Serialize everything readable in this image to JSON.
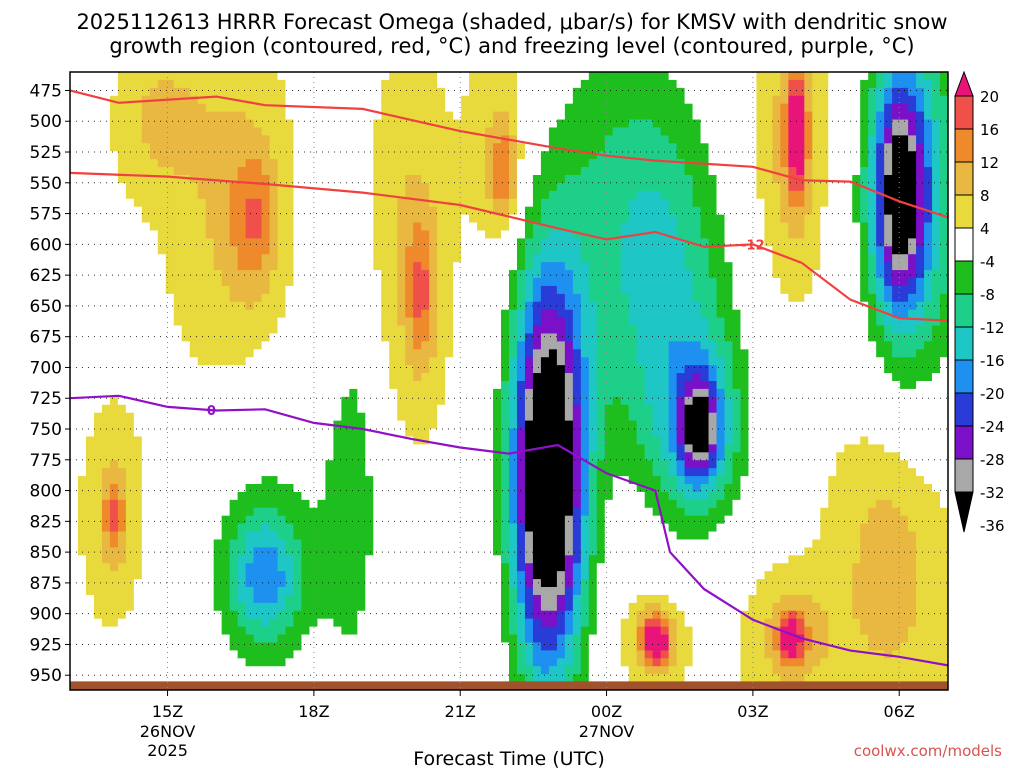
{
  "title": {
    "line1": "2025112613 HRRR Forecast Omega (shaded, μbar/s) for KMSV with dendritic snow",
    "line2": "growth region (contoured, red, °C) and freezing level (contoured, purple, °C)"
  },
  "credit": "coolwx.com/models",
  "chart_data": {
    "type": "heatmap",
    "title": "2025112613 HRRR Forecast Omega (shaded, μbar/s) for KMSV with dendritic snow growth region (contoured, red, °C) and freezing level (contoured, purple, °C)",
    "xlabel": "Forecast Time (UTC)",
    "ylabel": "",
    "x_ticks": [
      {
        "label": "15Z",
        "sub1": "26NOV",
        "sub2": "2025",
        "hours": 2
      },
      {
        "label": "18Z",
        "sub1": "",
        "sub2": "",
        "hours": 5
      },
      {
        "label": "21Z",
        "sub1": "",
        "sub2": "",
        "hours": 8
      },
      {
        "label": "00Z",
        "sub1": "27NOV",
        "sub2": "",
        "hours": 11
      },
      {
        "label": "03Z",
        "sub1": "",
        "sub2": "",
        "hours": 14
      },
      {
        "label": "06Z",
        "sub1": "",
        "sub2": "",
        "hours": 17
      }
    ],
    "xlim_hours": [
      0,
      18
    ],
    "y_ticks": [
      475,
      500,
      525,
      550,
      575,
      600,
      625,
      650,
      675,
      700,
      725,
      750,
      775,
      800,
      825,
      850,
      875,
      900,
      925,
      950
    ],
    "ylim": [
      460,
      962
    ],
    "grid": true,
    "colorbar": {
      "labels": [
        "20",
        "16",
        "12",
        "8",
        "4",
        "-4",
        "-8",
        "-12",
        "-16",
        "-20",
        "-24",
        "-28",
        "-32",
        "-36"
      ],
      "levels": [
        20,
        16,
        12,
        8,
        4,
        -4,
        -8,
        -12,
        -16,
        -20,
        -24,
        -28,
        -32,
        -36
      ],
      "colors": [
        "#e8147a",
        "#f0504a",
        "#ee8a2c",
        "#e8b840",
        "#e8da3c",
        "#ffffff",
        "#1ebe1e",
        "#1ecf8a",
        "#1ec6c6",
        "#1e90f0",
        "#2a3cd8",
        "#7a10c8",
        "#a8a8a8",
        "#000000"
      ]
    },
    "omega_blobs": [
      {
        "t": 3.2,
        "p": 560,
        "rt": 1.1,
        "rp": 150,
        "v": 6
      },
      {
        "t": 3.8,
        "p": 580,
        "rt": 0.5,
        "rp": 60,
        "v": 10
      },
      {
        "t": 1.8,
        "p": 500,
        "rt": 0.8,
        "rp": 60,
        "v": 6
      },
      {
        "t": 7.0,
        "p": 600,
        "rt": 0.8,
        "rp": 140,
        "v": 6
      },
      {
        "t": 7.2,
        "p": 640,
        "rt": 0.3,
        "rp": 60,
        "v": 10
      },
      {
        "t": 8.8,
        "p": 520,
        "rt": 0.6,
        "rp": 80,
        "v": 6
      },
      {
        "t": 8.9,
        "p": 545,
        "rt": 0.3,
        "rp": 40,
        "v": 10
      },
      {
        "t": 0.9,
        "p": 820,
        "rt": 0.6,
        "rp": 80,
        "v": 6
      },
      {
        "t": 0.9,
        "p": 820,
        "rt": 0.2,
        "rp": 30,
        "v": 10
      },
      {
        "t": 14.8,
        "p": 520,
        "rt": 0.7,
        "rp": 110,
        "v": 8
      },
      {
        "t": 14.9,
        "p": 510,
        "rt": 0.2,
        "rp": 50,
        "v": 18
      },
      {
        "t": 12.0,
        "p": 920,
        "rt": 0.6,
        "rp": 35,
        "v": 10
      },
      {
        "t": 12.0,
        "p": 922,
        "rt": 0.25,
        "rp": 18,
        "v": 18
      },
      {
        "t": 14.8,
        "p": 920,
        "rt": 0.9,
        "rp": 50,
        "v": 8
      },
      {
        "t": 14.8,
        "p": 920,
        "rt": 0.25,
        "rp": 20,
        "v": 16
      },
      {
        "t": 16.8,
        "p": 860,
        "rt": 1.1,
        "rp": 120,
        "v": 8
      },
      {
        "t": 4.0,
        "p": 860,
        "rt": 1.6,
        "rp": 120,
        "v": -8
      },
      {
        "t": 4.0,
        "p": 870,
        "rt": 0.7,
        "rp": 50,
        "v": -14
      },
      {
        "t": 5.8,
        "p": 800,
        "rt": 0.6,
        "rp": 160,
        "v": -8
      },
      {
        "t": 9.8,
        "p": 790,
        "rt": 0.7,
        "rp": 150,
        "v": -36
      },
      {
        "t": 9.8,
        "p": 790,
        "rt": 0.95,
        "rp": 200,
        "v": -12
      },
      {
        "t": 11.0,
        "p": 570,
        "rt": 1.4,
        "rp": 180,
        "v": -8
      },
      {
        "t": 12.3,
        "p": 620,
        "rt": 1.3,
        "rp": 150,
        "v": -12
      },
      {
        "t": 12.9,
        "p": 750,
        "rt": 1.1,
        "rp": 90,
        "v": -14
      },
      {
        "t": 12.9,
        "p": 750,
        "rt": 0.4,
        "rp": 40,
        "v": -24
      },
      {
        "t": 17.3,
        "p": 560,
        "rt": 1.1,
        "rp": 160,
        "v": -18
      },
      {
        "t": 17.0,
        "p": 560,
        "rt": 0.5,
        "rp": 90,
        "v": -26
      }
    ],
    "contours": [
      {
        "name": "-12",
        "color": "#f04040",
        "label_at_hours": 14.0,
        "points": [
          [
            0,
            542
          ],
          [
            2,
            545
          ],
          [
            4,
            551
          ],
          [
            6,
            558
          ],
          [
            8,
            568
          ],
          [
            10,
            587
          ],
          [
            11,
            596
          ],
          [
            12,
            590
          ],
          [
            13,
            602
          ],
          [
            14,
            600
          ],
          [
            15,
            615
          ],
          [
            16,
            645
          ],
          [
            17,
            660
          ],
          [
            18,
            662
          ]
        ]
      },
      {
        "name": "-12 upper",
        "color": "#f04040",
        "label_at_hours": null,
        "points": [
          [
            0,
            475
          ],
          [
            1,
            485
          ],
          [
            3,
            480
          ],
          [
            4,
            487
          ],
          [
            6,
            490
          ],
          [
            8,
            508
          ],
          [
            10,
            522
          ],
          [
            11,
            528
          ],
          [
            12,
            532
          ],
          [
            14,
            537
          ],
          [
            15,
            548
          ],
          [
            16,
            549
          ],
          [
            17,
            565
          ],
          [
            18,
            578
          ]
        ]
      },
      {
        "name": "0",
        "color": "#9010c8",
        "label_at_hours": 2.9,
        "points": [
          [
            0,
            725
          ],
          [
            1,
            723
          ],
          [
            2,
            732
          ],
          [
            3,
            735
          ],
          [
            4,
            734
          ],
          [
            5,
            745
          ],
          [
            6,
            750
          ],
          [
            7,
            758
          ],
          [
            8,
            765
          ],
          [
            9,
            770
          ],
          [
            10,
            763
          ],
          [
            11,
            786
          ],
          [
            12,
            800
          ],
          [
            12.3,
            850
          ],
          [
            13,
            880
          ],
          [
            14,
            905
          ],
          [
            15,
            920
          ],
          [
            16,
            930
          ],
          [
            17,
            935
          ],
          [
            18,
            942
          ]
        ]
      }
    ]
  }
}
